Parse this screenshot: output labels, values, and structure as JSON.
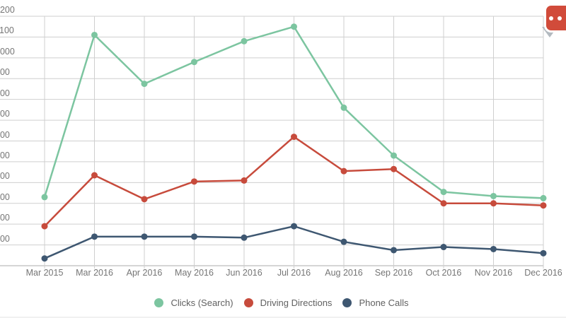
{
  "chart_data": {
    "type": "line",
    "title": "",
    "xlabel": "",
    "ylabel": "",
    "categories": [
      "Mar 2015",
      "Mar 2016",
      "Apr 2016",
      "May 2016",
      "Jun 2016",
      "Jul 2016",
      "Aug 2016",
      "Sep 2016",
      "Oct 2016",
      "Nov 2016",
      "Dec 2016"
    ],
    "series": [
      {
        "name": "Clicks (Search)",
        "color": "#7cc5a0",
        "values": [
          330,
          1110,
          875,
          980,
          1080,
          1150,
          760,
          530,
          355,
          335,
          325
        ]
      },
      {
        "name": "Driving Directions",
        "color": "#c74b3c",
        "values": [
          190,
          435,
          320,
          405,
          410,
          620,
          455,
          465,
          300,
          300,
          290
        ]
      },
      {
        "name": "Phone Calls",
        "color": "#3e5771",
        "values": [
          35,
          140,
          140,
          140,
          135,
          190,
          115,
          75,
          90,
          80,
          60
        ]
      }
    ],
    "ylim": [
      0,
      1200
    ],
    "ytick_step": 100,
    "grid": true,
    "legend_position": "bottom",
    "marker": "circle"
  },
  "colors": {
    "background": "#ffffff",
    "grid": "#cfcfcf",
    "axis": "#ababab",
    "tick_label": "#757575",
    "legend_label": "#616161"
  },
  "icon": {
    "name": "speech-bubble",
    "bubble_color": "#d14b3a",
    "tail_color": "#b3bac0",
    "dot_color": "#ffffff"
  }
}
